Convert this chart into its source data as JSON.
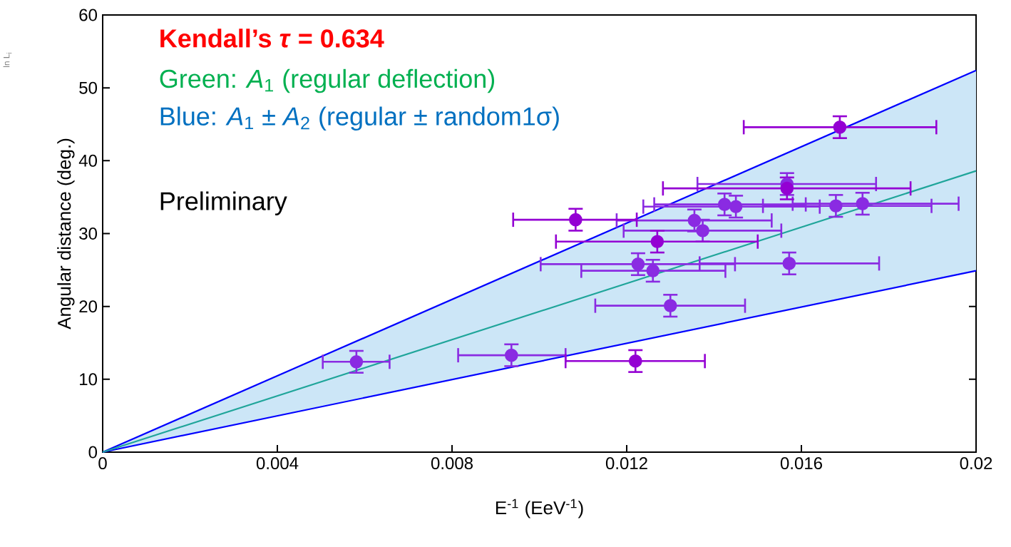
{
  "chart_data": {
    "type": "scatter",
    "xlabel": "E$^{-1}$ (EeV$^{-1}$)",
    "ylabel": "Angular distance (deg.)",
    "xlim": [
      0,
      0.02
    ],
    "ylim": [
      0,
      60
    ],
    "xticks": [
      0,
      0.004,
      0.008,
      0.012,
      0.016,
      0.02
    ],
    "yticks": [
      0,
      10,
      20,
      30,
      40,
      50,
      60
    ],
    "annotations": [
      "Kendall’s *τ* = 0.634",
      "Green: *A*$_{1}$ (regular deflection)",
      "Blue: *A*$_{1}$ ± *A*$_{2}$ (regular ± random1σ)",
      "Preliminary",
      "ln L$_{i}$"
    ],
    "series": [
      {
        "type": "line",
        "marker": "none",
        "color": "#0000ff",
        "x": [
          0,
          0.02
        ],
        "values": [
          0,
          52.4
        ],
        "lower": [
          0,
          24.9
        ],
        "upper": [
          0,
          52.4
        ]
      },
      {
        "type": "line",
        "marker": "none",
        "color": "#0000ff",
        "x": [
          0,
          0.02
        ],
        "values": [
          0,
          24.9
        ]
      },
      {
        "type": "line",
        "marker": "none",
        "color": "#1fa59a",
        "x": [
          0,
          0.02
        ],
        "values": [
          0,
          38.6
        ]
      },
      {
        "marker": "circle",
        "color": "#8a2be2",
        "x": [
          0.01567,
          0.01424,
          0.0145,
          0.01679,
          0.0174,
          0.01355,
          0.01374,
          0.01226,
          0.0126,
          0.01572,
          0.013,
          0.00581,
          0.00936
        ],
        "values": [
          36.8,
          34.0,
          33.7,
          33.8,
          34.1,
          31.8,
          30.4,
          25.8,
          24.9,
          25.9,
          20.1,
          12.4,
          13.3
        ],
        "errors": [
          1.5,
          1.5,
          1.5,
          1.5,
          1.5,
          1.5,
          1.5,
          1.5,
          1.5,
          1.5,
          1.5,
          1.5,
          1.5
        ],
        "xerrors": [
          [
            0.01362,
            0.01771
          ],
          [
            0.01263,
            0.0161
          ],
          [
            0.01238,
            0.01642
          ],
          [
            0.01512,
            0.01898
          ],
          [
            0.0158,
            0.0196
          ],
          [
            0.01177,
            0.01532
          ],
          [
            0.01193,
            0.01554
          ],
          [
            0.01003,
            0.01448
          ],
          [
            0.01096,
            0.01426
          ],
          [
            0.01367,
            0.01778
          ],
          [
            0.01128,
            0.01471
          ],
          [
            0.00504,
            0.00657
          ],
          [
            0.00814,
            0.0106
          ]
        ]
      },
      {
        "marker": "circle",
        "color": "#9400d3",
        "x": [
          0.01688,
          0.01567,
          0.01083,
          0.0127,
          0.0122
        ],
        "values": [
          44.6,
          36.2,
          31.9,
          28.9,
          12.5
        ],
        "errors": [
          1.5,
          1.5,
          1.5,
          1.5,
          1.5
        ],
        "xerrors": [
          [
            0.01468,
            0.01909
          ],
          [
            0.01283,
            0.0185
          ],
          [
            0.0094,
            0.01223
          ],
          [
            0.01038,
            0.015
          ],
          [
            0.0106,
            0.01379
          ]
        ]
      }
    ]
  }
}
